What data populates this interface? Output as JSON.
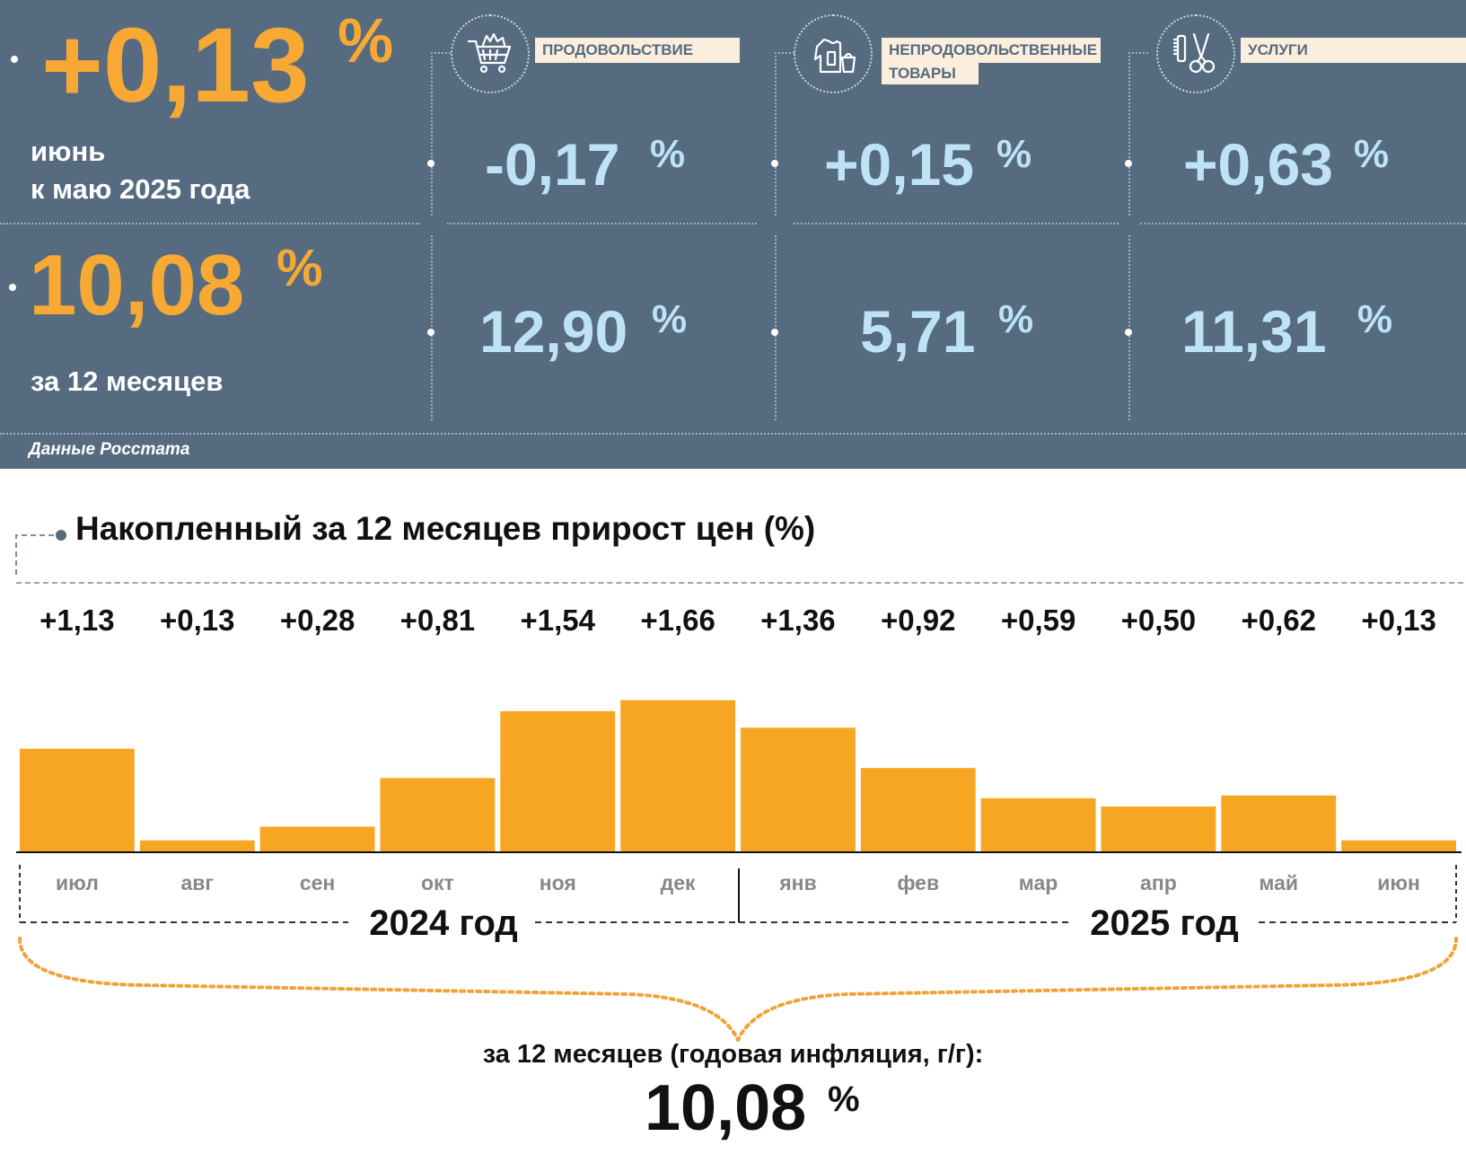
{
  "header": {
    "monthly_value": "+0,13",
    "monthly_pct": "%",
    "monthly_caption_line1": "июнь",
    "monthly_caption_line2": "к маю 2025 года",
    "annual_value": "10,08",
    "annual_pct": "%",
    "annual_caption": "за 12 месяцев",
    "source": "Данные Росстата"
  },
  "categories": [
    {
      "icon": "shopping-cart-icon",
      "label_line1": "ПРОДОВОЛЬСТВИЕ",
      "label_line2": "",
      "monthly": "-0,17",
      "annual": "12,90",
      "pct": "%"
    },
    {
      "icon": "clothing-icon",
      "label_line1": "НЕПРОДОВОЛЬСТВЕННЫЕ",
      "label_line2": "ТОВАРЫ",
      "monthly": "+0,15",
      "annual": "5,71",
      "pct": "%"
    },
    {
      "icon": "scissors-comb-icon",
      "label_line1": "УСЛУГИ",
      "label_line2": "",
      "monthly": "+0,63",
      "annual": "11,31",
      "pct": "%"
    }
  ],
  "chart_title": "Накопленный за 12 месяцев прирост цен (%)",
  "chart_data": {
    "type": "bar",
    "categories": [
      "июл",
      "авг",
      "сен",
      "окт",
      "ноя",
      "дек",
      "янв",
      "фев",
      "мар",
      "апр",
      "май",
      "июн"
    ],
    "values": [
      1.13,
      0.13,
      0.28,
      0.81,
      1.54,
      1.66,
      1.36,
      0.92,
      0.59,
      0.5,
      0.62,
      0.13
    ],
    "value_labels": [
      "+1,13",
      "+0,13",
      "+0,28",
      "+0,81",
      "+1,54",
      "+1,66",
      "+1,36",
      "+0,92",
      "+0,59",
      "+0,50",
      "+0,62",
      "+0,13"
    ],
    "groups": [
      {
        "label": "2024 год",
        "months": 6
      },
      {
        "label": "2025 год",
        "months": 6
      }
    ],
    "bar_color": "#f7a623"
  },
  "summary": {
    "caption": "за 12 месяцев (годовая инфляция, г/г):",
    "value": "10,08",
    "pct": "%"
  }
}
